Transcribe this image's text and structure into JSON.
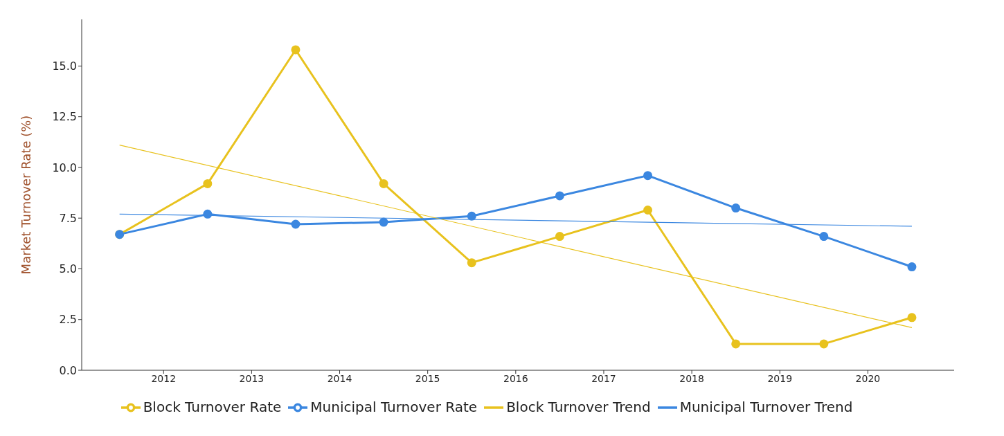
{
  "chart_data": {
    "type": "line",
    "ylabel": "Market Turnover Rate (%)",
    "xlim": [
      2011.07,
      2020.98
    ],
    "xticks": [
      2012,
      2013,
      2014,
      2015,
      2016,
      2017,
      2018,
      2019,
      2020
    ],
    "ylim": [
      0,
      17.3
    ],
    "yticks": [
      {
        "value": 0,
        "label": "0.0"
      },
      {
        "value": 2.5,
        "label": "2.5"
      },
      {
        "value": 5,
        "label": "5.0"
      },
      {
        "value": 7.5,
        "label": "7.5"
      },
      {
        "value": 10,
        "label": "10.0"
      },
      {
        "value": 12.5,
        "label": "12.5"
      },
      {
        "value": 15,
        "label": "15.0"
      }
    ],
    "legend": "bottom",
    "series": [
      {
        "name": "Block Turnover Rate",
        "color": "#e8c21e",
        "marker": "circle",
        "x": [
          2011.5,
          2012.5,
          2013.5,
          2014.5,
          2015.5,
          2016.5,
          2017.5,
          2018.5,
          2019.5,
          2020.5
        ],
        "values": [
          6.7,
          9.2,
          15.8,
          9.2,
          5.3,
          6.6,
          7.9,
          1.3,
          1.3,
          2.6
        ]
      },
      {
        "name": "Municipal Turnover Rate",
        "color": "#3b87e0",
        "marker": "circle",
        "x": [
          2011.5,
          2012.5,
          2013.5,
          2014.5,
          2015.5,
          2016.5,
          2017.5,
          2018.5,
          2019.5,
          2020.5
        ],
        "values": [
          6.7,
          7.7,
          7.2,
          7.3,
          7.6,
          8.6,
          9.6,
          8.0,
          6.6,
          5.1
        ]
      },
      {
        "name": "Block Turnover Trend",
        "color": "#e8c21e",
        "marker": "none",
        "x": [
          2011.5,
          2020.5
        ],
        "values": [
          11.1,
          2.1
        ]
      },
      {
        "name": "Municipal Turnover Trend",
        "color": "#3b87e0",
        "marker": "none",
        "x": [
          2011.5,
          2020.5
        ],
        "values": [
          7.7,
          7.1
        ]
      }
    ]
  }
}
